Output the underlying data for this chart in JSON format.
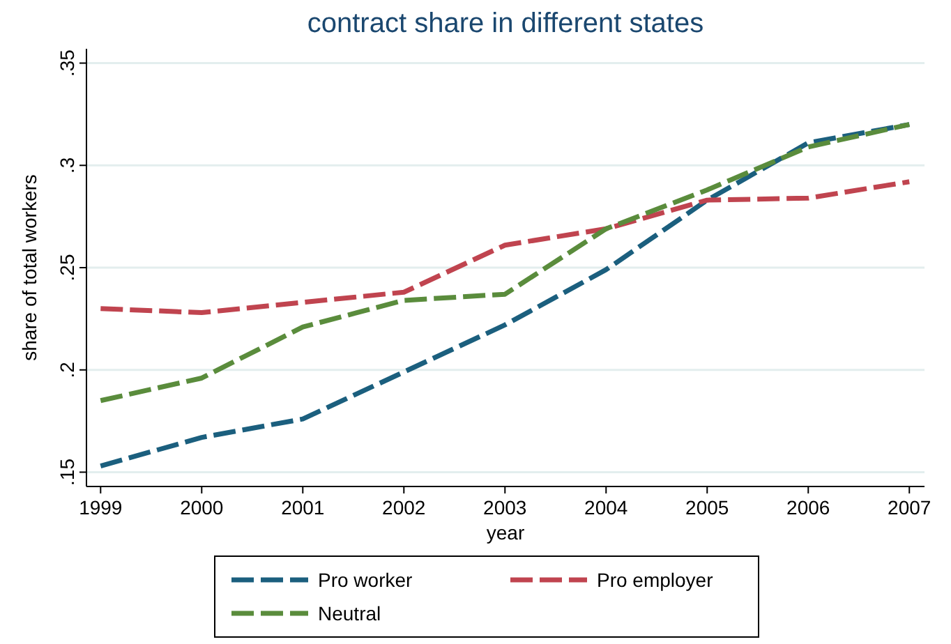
{
  "chart_data": {
    "type": "line",
    "title": "contract share in different states",
    "xlabel": "year",
    "ylabel": "share of total workers",
    "x": [
      1999,
      2000,
      2001,
      2002,
      2003,
      2004,
      2005,
      2006,
      2007
    ],
    "xlim": [
      1998.86,
      2007.15
    ],
    "xticks": [
      1999,
      2000,
      2001,
      2002,
      2003,
      2004,
      2005,
      2006,
      2007
    ],
    "ylim": [
      0.143,
      0.357
    ],
    "yticks": [
      {
        "value": 0.15,
        "label": ".15"
      },
      {
        "value": 0.2,
        "label": ".2"
      },
      {
        "value": 0.25,
        "label": ".25"
      },
      {
        "value": 0.3,
        "label": ".3"
      },
      {
        "value": 0.35,
        "label": ".35"
      }
    ],
    "grid": "y",
    "legend": "bottom",
    "line_style": "dashed",
    "marker": "none",
    "series": [
      {
        "name": "Pro worker",
        "color": "#1b5f7e",
        "values": [
          0.153,
          0.167,
          0.176,
          0.199,
          0.222,
          0.249,
          0.283,
          0.311,
          0.32
        ]
      },
      {
        "name": "Pro employer",
        "color": "#c0444f",
        "values": [
          0.23,
          0.228,
          0.233,
          0.238,
          0.261,
          0.269,
          0.283,
          0.284,
          0.292
        ]
      },
      {
        "name": "Neutral",
        "color": "#5a8c3c",
        "values": [
          0.185,
          0.196,
          0.221,
          0.234,
          0.237,
          0.269,
          0.288,
          0.309,
          0.32
        ]
      }
    ]
  }
}
